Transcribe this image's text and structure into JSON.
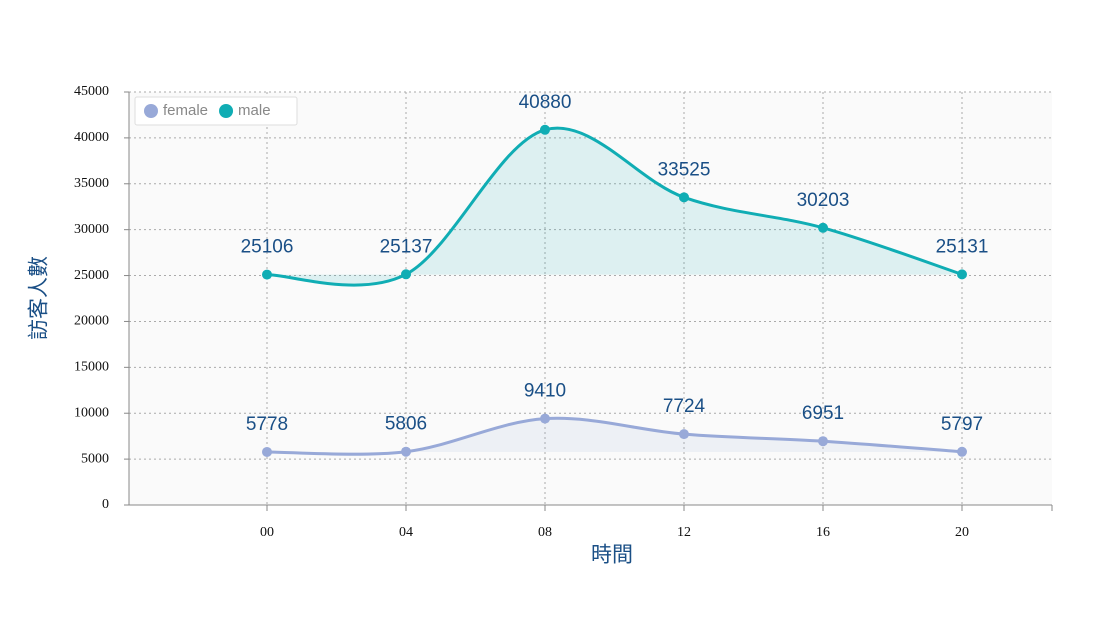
{
  "chart_data": {
    "type": "line",
    "categories": [
      "00",
      "04",
      "08",
      "12",
      "16",
      "20"
    ],
    "series": [
      {
        "name": "female",
        "color": "#98a9d8",
        "values": [
          5778,
          5806,
          9410,
          7724,
          6951,
          5797
        ]
      },
      {
        "name": "male",
        "color": "#10adb4",
        "values": [
          25106,
          25137,
          40880,
          33525,
          30203,
          25131
        ]
      }
    ],
    "xlabel": "時間",
    "ylabel": "訪客人數",
    "ylim": [
      0,
      45000
    ],
    "yticks": [
      0,
      5000,
      10000,
      15000,
      20000,
      25000,
      30000,
      35000,
      40000,
      45000
    ],
    "grid": true,
    "legend": "top-left",
    "smooth": true
  }
}
